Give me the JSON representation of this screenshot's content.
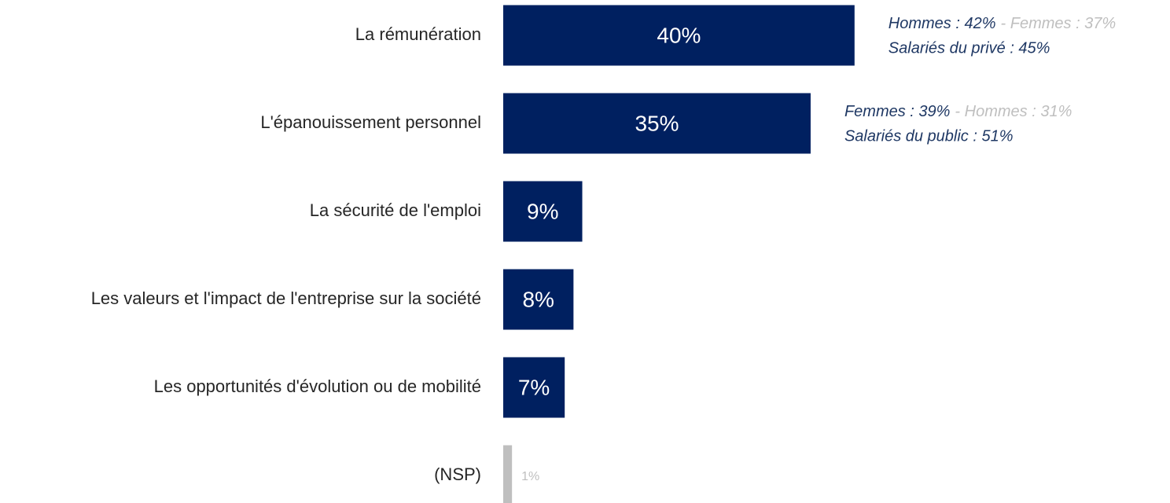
{
  "chart_data": {
    "type": "bar",
    "orientation": "horizontal",
    "categories": [
      "La rémunération",
      "L'épanouissement personnel",
      "La sécurité de l'emploi",
      "Les valeurs et l'impact de l'entreprise sur la société",
      "Les opportunités d'évolution ou de mobilité",
      "(NSP)"
    ],
    "values": [
      40,
      35,
      9,
      8,
      7,
      1
    ],
    "value_labels": [
      "40%",
      "35%",
      "9%",
      "8%",
      "7%",
      "1%"
    ],
    "colors": [
      "#002060",
      "#002060",
      "#002060",
      "#002060",
      "#002060",
      "#bfbfbf"
    ],
    "annotation_color": "#1f3864",
    "annotation_secondary_color": "#bfbfbf",
    "annotations": [
      {
        "primary": "Hommes : 42%",
        "secondary": "- Femmes : 37%",
        "detail": "Salariés du privé : 45%"
      },
      {
        "primary": "Femmes : 39%",
        "secondary": "- Hommes : 31%",
        "detail": "Salariés du public : 51%"
      }
    ]
  }
}
